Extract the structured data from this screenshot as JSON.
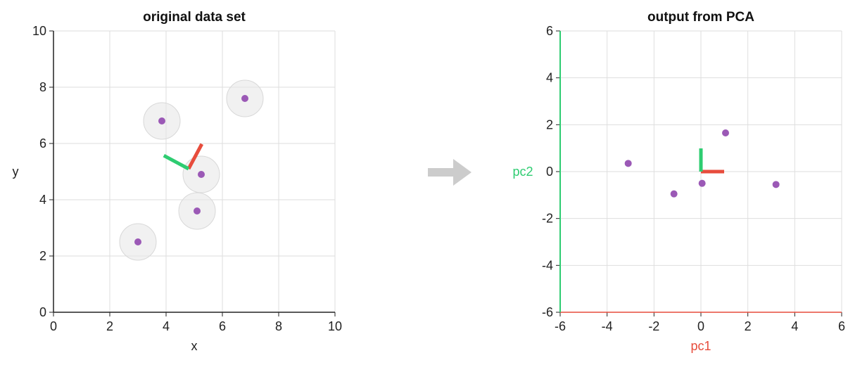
{
  "chart_data": [
    {
      "type": "scatter",
      "title": "original data set",
      "xlabel": "x",
      "ylabel": "y",
      "xlim": [
        0,
        10
      ],
      "ylim": [
        0,
        10
      ],
      "xticks": [
        "0",
        "2",
        "4",
        "6",
        "8",
        "10"
      ],
      "yticks": [
        "0",
        "2",
        "4",
        "6",
        "8",
        "10"
      ],
      "grid": true,
      "point_color": "#9b59b6",
      "points": [
        {
          "x": 3.0,
          "y": 2.5
        },
        {
          "x": 3.85,
          "y": 6.8
        },
        {
          "x": 5.1,
          "y": 3.6
        },
        {
          "x": 5.25,
          "y": 4.9
        },
        {
          "x": 6.8,
          "y": 7.6
        }
      ],
      "mean": {
        "x": 4.8,
        "y": 5.1
      },
      "components": [
        {
          "name": "pc1",
          "color": "#e74c3c",
          "dx": 0.47,
          "dy": 0.88
        },
        {
          "name": "pc2",
          "color": "#2ecc71",
          "dx": -0.88,
          "dy": 0.47
        }
      ]
    },
    {
      "type": "scatter",
      "title": "output from PCA",
      "xlabel": "pc1",
      "ylabel": "pc2",
      "xlabel_color": "#e74c3c",
      "ylabel_color": "#2ecc71",
      "xlim": [
        -6,
        6
      ],
      "ylim": [
        -6,
        6
      ],
      "xticks": [
        "-6",
        "-4",
        "-2",
        "0",
        "2",
        "4",
        "6"
      ],
      "yticks": [
        "-6",
        "-4",
        "-2",
        "0",
        "2",
        "4",
        "6"
      ],
      "grid": true,
      "point_color": "#9b59b6",
      "points": [
        {
          "x": -3.1,
          "y": 0.35
        },
        {
          "x": -1.15,
          "y": -0.95
        },
        {
          "x": 0.05,
          "y": -0.5
        },
        {
          "x": 1.05,
          "y": 1.65
        },
        {
          "x": 3.2,
          "y": -0.55
        }
      ],
      "components": [
        {
          "name": "pc1",
          "color": "#e74c3c",
          "dx": 1.0,
          "dy": 0.0
        },
        {
          "name": "pc2",
          "color": "#2ecc71",
          "dx": 0.0,
          "dy": 1.0
        }
      ]
    }
  ],
  "arrow": {
    "icon": "arrow-right-icon",
    "color": "#cccccc"
  }
}
